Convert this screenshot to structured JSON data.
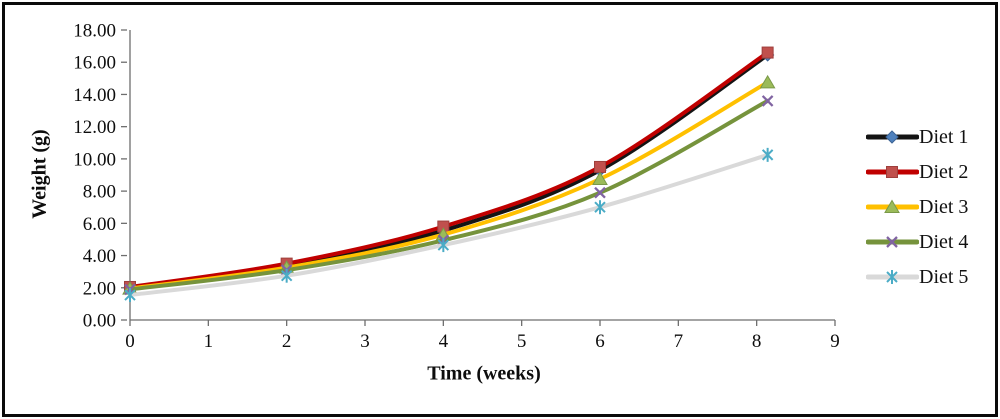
{
  "figure": {
    "background": "#ffffff",
    "border_color": "#0a0a0a"
  },
  "chart_data": {
    "type": "line",
    "title": "",
    "xlabel": "Time (weeks)",
    "ylabel": "Weight (g)",
    "xlim": [
      0,
      9
    ],
    "ylim": [
      0,
      18
    ],
    "grid": false,
    "smooth_lines": true,
    "legend_position": "right",
    "axis_color": "#6e6e6e",
    "tick_label_color": "#0d0d0d",
    "x_ticks": [
      {
        "v": 0,
        "label": "0"
      },
      {
        "v": 1,
        "label": "1"
      },
      {
        "v": 2,
        "label": "2"
      },
      {
        "v": 3,
        "label": "3"
      },
      {
        "v": 4,
        "label": "4"
      },
      {
        "v": 5,
        "label": "5"
      },
      {
        "v": 6,
        "label": "6"
      },
      {
        "v": 7,
        "label": "7"
      },
      {
        "v": 8,
        "label": "8"
      },
      {
        "v": 9,
        "label": "9"
      }
    ],
    "y_ticks": [
      {
        "v": 0,
        "label": "0.00"
      },
      {
        "v": 2,
        "label": "2.00"
      },
      {
        "v": 4,
        "label": "4.00"
      },
      {
        "v": 6,
        "label": "6.00"
      },
      {
        "v": 8,
        "label": "8.00"
      },
      {
        "v": 10,
        "label": "10.00"
      },
      {
        "v": 12,
        "label": "12.00"
      },
      {
        "v": 14,
        "label": "14.00"
      },
      {
        "v": 16,
        "label": "16.00"
      },
      {
        "v": 18,
        "label": "18.00"
      }
    ],
    "x": [
      0,
      2,
      4,
      6,
      8.14
    ],
    "series": [
      {
        "name": "Diet 1",
        "marker": "diamond",
        "line_color": "#141414",
        "marker_color": "#4F81BD",
        "marker_edge": "#3c6394",
        "values": [
          2.0,
          3.4,
          5.55,
          9.3,
          16.45
        ]
      },
      {
        "name": "Diet 2",
        "marker": "square",
        "line_color": "#C00000",
        "marker_color": "#C0504D",
        "marker_edge": "#9e3f3c",
        "values": [
          2.05,
          3.5,
          5.8,
          9.5,
          16.6
        ]
      },
      {
        "name": "Diet 3",
        "marker": "triangle",
        "line_color": "#FFC000",
        "marker_color": "#9BBB59",
        "marker_edge": "#7a9948",
        "values": [
          1.95,
          3.25,
          5.3,
          8.75,
          14.75
        ]
      },
      {
        "name": "Diet 4",
        "marker": "x",
        "line_color": "#76933C",
        "marker_color": "#8064A2",
        "marker_edge": "#8064A2",
        "values": [
          1.9,
          3.1,
          4.95,
          7.9,
          13.6
        ]
      },
      {
        "name": "Diet 5",
        "marker": "asterisk",
        "line_color": "#D9D9D9",
        "marker_color": "#4BACC6",
        "marker_edge": "#4BACC6",
        "values": [
          1.55,
          2.75,
          4.65,
          7.0,
          10.25
        ]
      }
    ]
  }
}
